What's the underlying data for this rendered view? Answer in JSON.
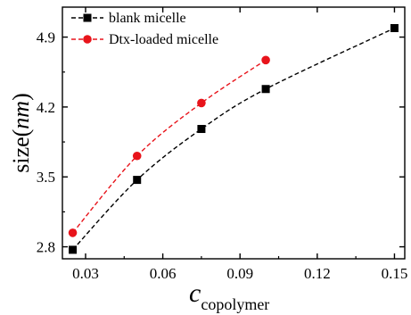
{
  "chart_data": {
    "type": "line",
    "xlabel": {
      "main": "c",
      "subscript": "copolymer"
    },
    "ylabel": {
      "main": "size(",
      "italic": "nm",
      "close": ")"
    },
    "xlim": [
      0.021,
      0.154
    ],
    "ylim": [
      2.68,
      5.2
    ],
    "xticks": [
      {
        "value": 0.03,
        "label": "0.03"
      },
      {
        "value": 0.06,
        "label": "0.06"
      },
      {
        "value": 0.09,
        "label": "0.09"
      },
      {
        "value": 0.12,
        "label": "0.12"
      },
      {
        "value": 0.15,
        "label": "0.15"
      }
    ],
    "yticks": [
      {
        "value": 2.8,
        "label": "2.8"
      },
      {
        "value": 3.5,
        "label": "3.5"
      },
      {
        "value": 4.2,
        "label": "4.2"
      },
      {
        "value": 4.9,
        "label": "4.9"
      }
    ],
    "legend_position": "top-left",
    "grid": false,
    "series": [
      {
        "name": "blank micelle",
        "marker": "square",
        "color": "#000000",
        "line_style": "dashed",
        "x": [
          0.025,
          0.05,
          0.075,
          0.1,
          0.15
        ],
        "y": [
          2.77,
          3.47,
          3.98,
          4.38,
          4.99
        ]
      },
      {
        "name": "Dtx-loaded micelle",
        "marker": "circle",
        "color": "#e8141b",
        "line_style": "dashed",
        "x": [
          0.025,
          0.05,
          0.075,
          0.1
        ],
        "y": [
          2.94,
          3.71,
          4.24,
          4.67
        ]
      }
    ]
  }
}
